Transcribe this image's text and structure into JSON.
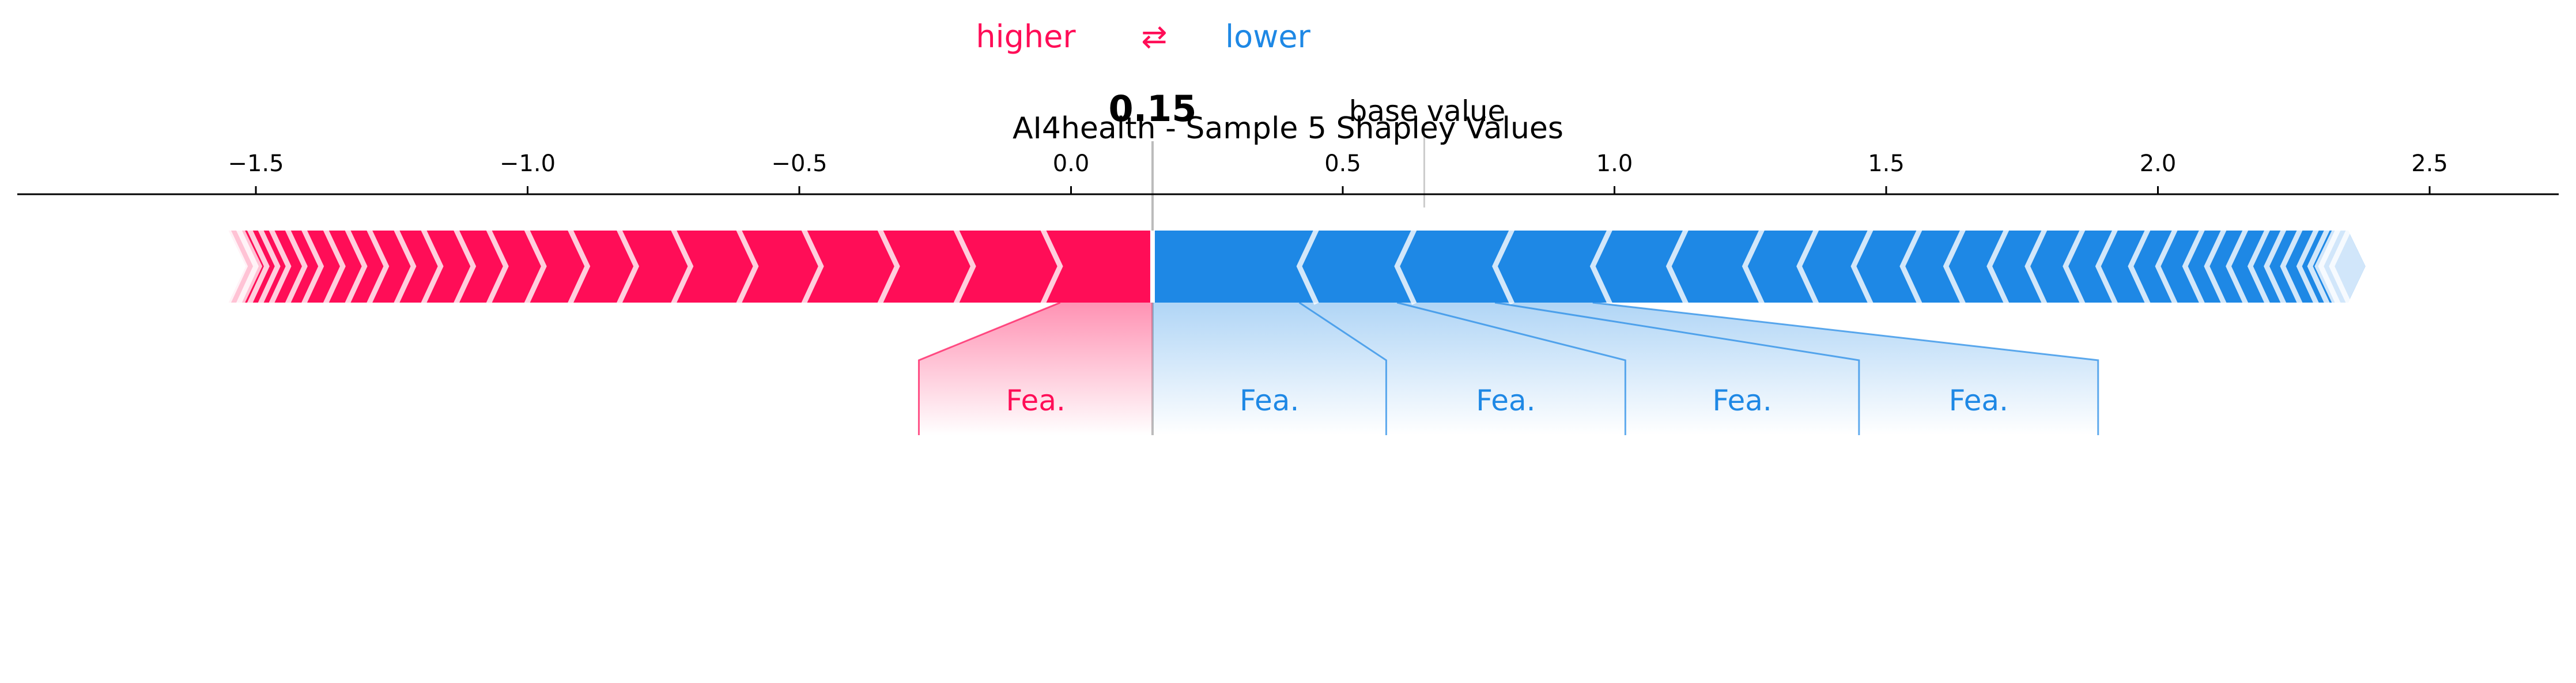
{
  "chart_data": {
    "type": "force",
    "title": "AI4health - Sample 5 Shapley Values",
    "legend": {
      "higher_label": "higher",
      "lower_label": "lower",
      "arrow": "⇄",
      "higher_color": "#FF0D57",
      "lower_color": "#1E88E5"
    },
    "output_value": 0.15,
    "output_value_label": "0.15",
    "base_value": 0.65,
    "base_value_label": "base value",
    "xlim": [
      -1.95,
      2.75
    ],
    "ticks": [
      -1.5,
      -1.0,
      -0.5,
      0.0,
      0.5,
      1.0,
      1.5,
      2.0,
      2.5
    ],
    "tick_labels": [
      "−1.5",
      "−1.0",
      "−0.5",
      "0.0",
      "0.5",
      "1.0",
      "1.5",
      "2.0",
      "2.5"
    ],
    "red_bar": {
      "start": -1.55,
      "end": 0.15
    },
    "blue_bar": {
      "start": 0.15,
      "end": 2.35
    },
    "red_boundaries": [
      -0.02,
      -0.18,
      -0.32,
      -0.46,
      -0.58,
      -0.7,
      -0.8,
      -0.89,
      -0.97,
      -1.04,
      -1.1,
      -1.16,
      -1.21,
      -1.26,
      -1.3,
      -1.34,
      -1.38,
      -1.41,
      -1.44,
      -1.46,
      -1.48,
      -1.5,
      -1.52
    ],
    "blue_boundaries": [
      0.42,
      0.6,
      0.78,
      0.96,
      1.1,
      1.24,
      1.34,
      1.44,
      1.53,
      1.61,
      1.69,
      1.76,
      1.83,
      1.89,
      1.95,
      2.0,
      2.05,
      2.09,
      2.13,
      2.17,
      2.2,
      2.23,
      2.26,
      2.28,
      2.3,
      2.32
    ],
    "labeled_features": [
      {
        "label": "Fea.",
        "side": "higher",
        "seg_start": -0.02,
        "seg_end": 0.15,
        "label_left": -0.28,
        "label_right": 0.15
      },
      {
        "label": "Fea.",
        "side": "lower",
        "seg_start": 0.15,
        "seg_end": 0.42,
        "label_left": 0.15,
        "label_right": 0.58
      },
      {
        "label": "Fea.",
        "side": "lower",
        "seg_start": 0.42,
        "seg_end": 0.6,
        "label_left": 0.58,
        "label_right": 1.02
      },
      {
        "label": "Fea.",
        "side": "lower",
        "seg_start": 0.6,
        "seg_end": 0.78,
        "label_left": 1.02,
        "label_right": 1.45
      },
      {
        "label": "Fea.",
        "side": "lower",
        "seg_start": 0.78,
        "seg_end": 0.96,
        "label_left": 1.45,
        "label_right": 1.89
      }
    ]
  }
}
